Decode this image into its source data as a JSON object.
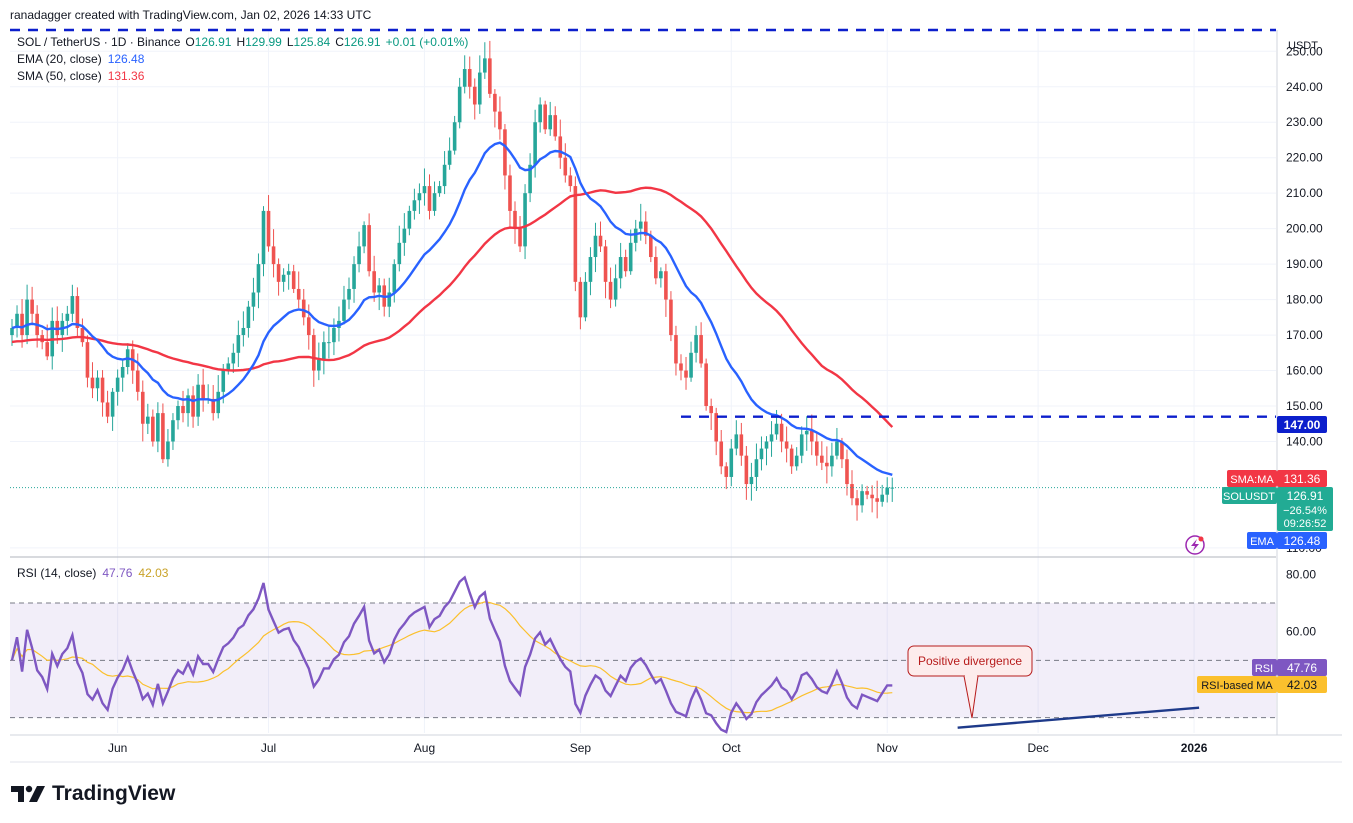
{
  "header": {
    "attribution": "ranadagger created with TradingView.com, Jan 02, 2026 14:33 UTC",
    "symbol": "SOL / TetherUS · 1D · Binance",
    "ohlc": [
      {
        "label": "O",
        "value": "126.91"
      },
      {
        "label": "H",
        "value": "129.99"
      },
      {
        "label": "L",
        "value": "125.84"
      },
      {
        "label": "C",
        "value": "126.91"
      }
    ],
    "change": "+0.01 (+0.01%)",
    "ema_label": "EMA (20, close)",
    "ema_value": "126.48",
    "sma_label": "SMA (50, close)",
    "sma_value": "131.36"
  },
  "rsi_header": {
    "label": "RSI (14, close)",
    "rsi_value": "47.76",
    "ma_value": "42.03"
  },
  "currency": "USDT",
  "colors": {
    "up": "#26a69a",
    "down": "#ef5350",
    "ema": "#2962ff",
    "sma": "#f23645",
    "rsi": "#7e57c2",
    "rsi_ma": "#fbc02d",
    "level": "#0c1fcc",
    "divergence": "#1e3a8a"
  },
  "badges": {
    "level": "147.00",
    "sma_tag": "SMA:MA",
    "sma_value": "131.36",
    "symbol_tag": "SOLUSDT",
    "price": "126.91",
    "change_pct": "−26.54%",
    "countdown": "09:26:52",
    "ema_tag": "EMA",
    "ema_value": "126.48",
    "rsi_tag": "RSI",
    "rsi_value": "47.76",
    "rsi_ma_tag": "RSI-based MA",
    "rsi_ma_value": "42.03"
  },
  "annotation": "Positive divergence",
  "footer": {
    "brand": "TradingView"
  },
  "chart_data": {
    "type": "candlestick",
    "price_axis": {
      "ticks": [
        "110.00",
        "140.00",
        "150.00",
        "160.00",
        "170.00",
        "180.00",
        "190.00",
        "200.00",
        "210.00",
        "220.00",
        "230.00",
        "240.00",
        "250.00"
      ],
      "range": [
        108,
        256
      ]
    },
    "rsi_axis": {
      "ticks": [
        "60.00",
        "80.00"
      ],
      "bands": [
        30,
        50,
        70
      ],
      "range": [
        25,
        85
      ]
    },
    "x_labels": [
      "Jun",
      "Jul",
      "Aug",
      "Sep",
      "Oct",
      "Nov",
      "Dec",
      "2026"
    ],
    "x_label_day": [
      21,
      51,
      82,
      113,
      143,
      174,
      204,
      235
    ],
    "horizontal_levels": [
      147,
      256
    ],
    "closes": [
      172,
      176,
      170,
      180,
      176,
      170,
      168,
      164,
      174,
      170,
      174,
      176,
      181,
      172,
      168,
      158,
      155,
      158,
      151,
      147,
      154,
      158,
      161,
      166,
      160,
      154,
      145,
      147,
      140,
      148,
      135,
      140,
      146,
      150,
      148,
      153,
      147,
      156,
      152,
      152,
      148,
      154,
      160,
      162,
      165,
      170,
      172,
      178,
      182,
      190,
      205,
      195,
      190,
      185,
      187,
      188,
      183,
      180,
      175,
      170,
      160,
      163,
      168,
      168,
      172,
      174,
      180,
      183,
      190,
      195,
      201,
      188,
      182,
      184,
      178,
      182,
      190,
      196,
      200,
      205,
      208,
      210,
      212,
      205,
      210,
      212,
      218,
      222,
      230,
      240,
      245,
      240,
      235,
      244,
      248,
      238,
      233,
      228,
      215,
      205,
      200,
      195,
      210,
      218,
      230,
      235,
      228,
      232,
      226,
      220,
      215,
      212,
      185,
      175,
      185,
      192,
      198,
      195,
      185,
      180,
      186,
      192,
      188,
      196,
      200,
      202,
      198,
      192,
      186,
      188,
      180,
      170,
      162,
      160,
      158,
      165,
      170,
      162,
      150,
      148,
      140,
      133,
      130,
      138,
      142,
      136,
      128,
      130,
      135,
      138,
      140,
      142,
      145,
      140,
      138,
      133,
      136,
      142,
      143,
      140,
      136,
      134,
      133,
      136,
      140,
      135,
      128,
      124,
      122,
      126,
      125,
      124,
      123,
      125,
      127,
      127
    ]
  }
}
